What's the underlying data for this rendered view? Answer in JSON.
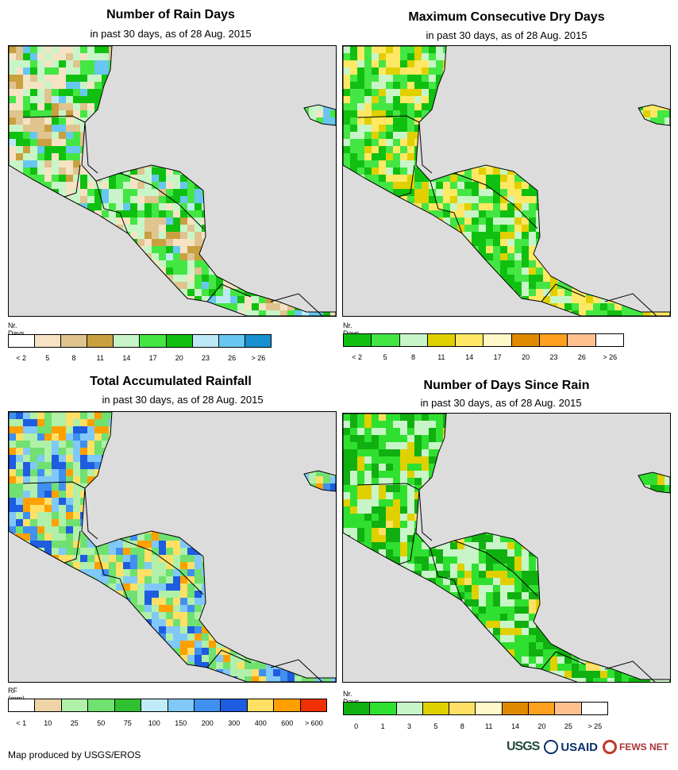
{
  "footer": {
    "credit": "Map produced by USGS/EROS"
  },
  "logos": {
    "usgs": "USGS",
    "usaid": "USAID",
    "fews": "FEWS NET"
  },
  "panels": [
    {
      "title": "Number of Rain Days",
      "subtitle": "in past 30 days, as of 28 Aug. 2015",
      "legend_title": "Nr. Days",
      "legend_colors": [
        "#ffffff",
        "#f5e3c4",
        "#e0c48f",
        "#c9a040",
        "#c8f5c8",
        "#44e644",
        "#10c010",
        "#bde9f7",
        "#67c7f0",
        "#1890d0"
      ],
      "legend_ticks": [
        "< 2",
        "5",
        "8",
        "11",
        "14",
        "17",
        "20",
        "23",
        "26",
        "> 26"
      ],
      "palette": [
        "#c9a040",
        "#e0c48f",
        "#f5e3c4",
        "#c8f5c8",
        "#44e644",
        "#10c010",
        "#67c7f0",
        "#bde9f7"
      ]
    },
    {
      "title": "Maximum Consecutive Dry Days",
      "subtitle": "in past 30 days, as of 28 Aug. 2015",
      "legend_title": "Nr. Days",
      "legend_colors": [
        "#10c010",
        "#44e644",
        "#c8f5c8",
        "#e0d000",
        "#ffe864",
        "#fff8c8",
        "#e08a00",
        "#ffa020",
        "#ffc090",
        "#ffffff"
      ],
      "legend_ticks": [
        "< 2",
        "5",
        "8",
        "11",
        "14",
        "17",
        "20",
        "23",
        "26",
        "> 26"
      ],
      "palette": [
        "#44e644",
        "#c8f5c8",
        "#10c010",
        "#44e644",
        "#ffe864",
        "#e0d000",
        "#c8f5c8"
      ]
    },
    {
      "title": "Total Accumulated Rainfall",
      "subtitle": "in past 30 days, as of 28 Aug. 2015",
      "legend_title": "RF (mm)",
      "legend_colors": [
        "#ffffff",
        "#f0d4a8",
        "#b0f0a8",
        "#70e070",
        "#30c030",
        "#c0ecfa",
        "#80c8f8",
        "#4090f0",
        "#1e5ce0",
        "#ffe064",
        "#ffa000",
        "#f03000"
      ],
      "legend_ticks": [
        "< 1",
        "10",
        "25",
        "50",
        "75",
        "100",
        "150",
        "200",
        "300",
        "400",
        "600",
        "> 600"
      ],
      "palette": [
        "#4090f0",
        "#1e5ce0",
        "#80c8f8",
        "#b0f0a8",
        "#70e070",
        "#ffe064",
        "#ffa000",
        "#4090f0"
      ]
    },
    {
      "title": "Number of Days Since Rain",
      "subtitle": "in past 30 days, as of 28 Aug. 2015",
      "legend_title": "Nr. Days",
      "legend_colors": [
        "#10b010",
        "#30e030",
        "#c8f5c8",
        "#e0d000",
        "#ffe064",
        "#fff8c8",
        "#e08a00",
        "#ffa020",
        "#ffc090",
        "#ffffff"
      ],
      "legend_ticks": [
        "0",
        "1",
        "3",
        "5",
        "8",
        "11",
        "14",
        "20",
        "25",
        "> 25"
      ],
      "palette": [
        "#10b010",
        "#30e030",
        "#10b010",
        "#c8f5c8",
        "#30e030",
        "#e0d000",
        "#ffe064"
      ]
    }
  ]
}
